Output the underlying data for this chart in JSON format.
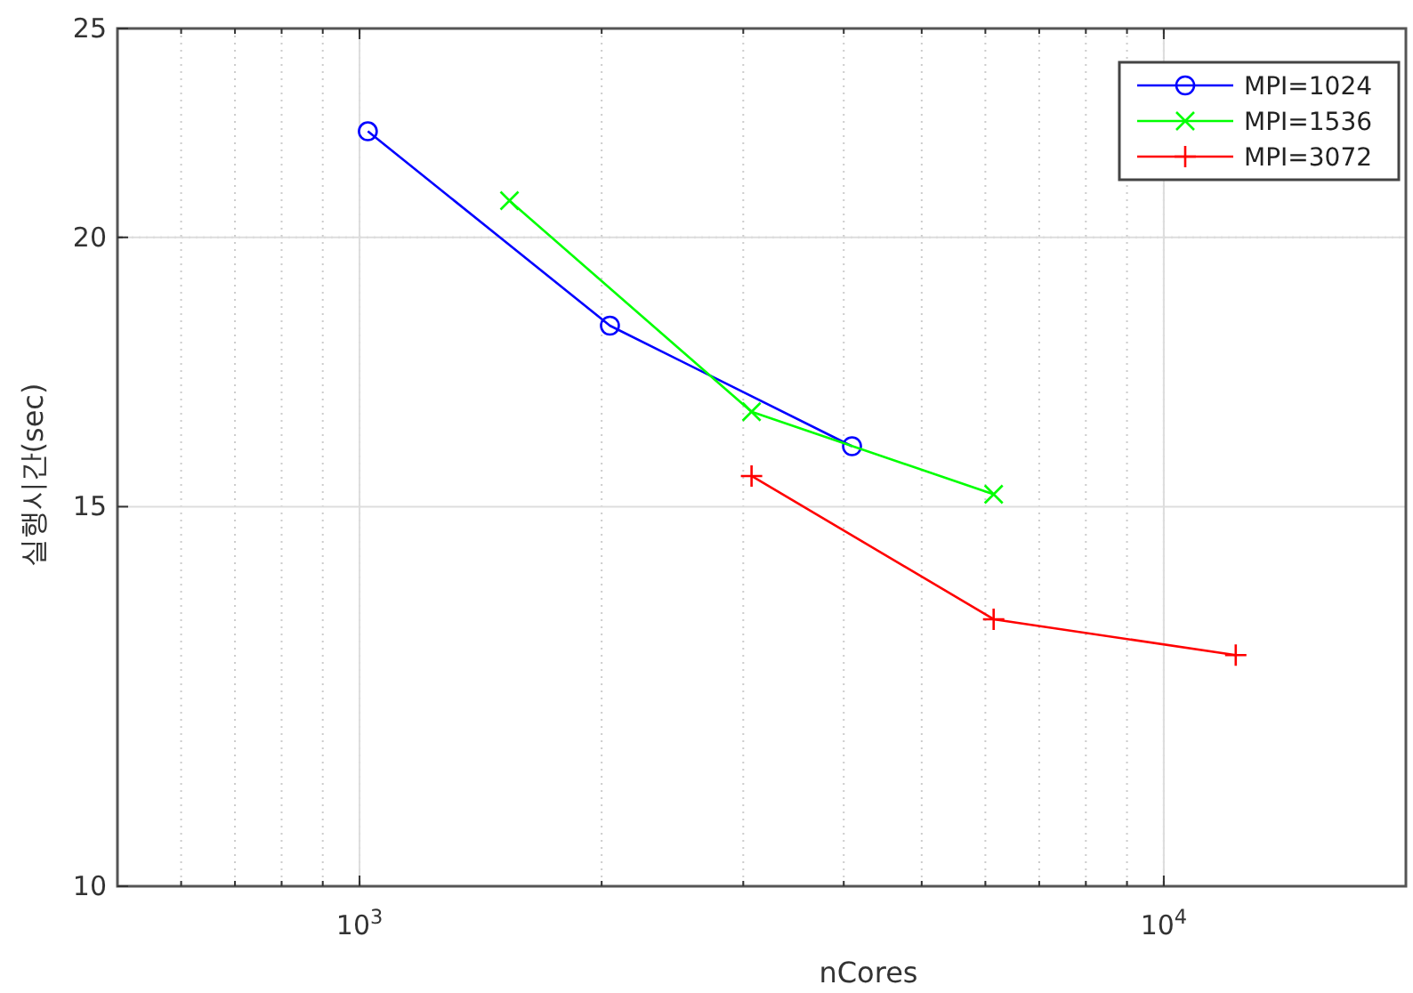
{
  "chart_data": {
    "type": "line",
    "xlabel": "nCores",
    "ylabel": "실행시간(sec)",
    "log": "xy",
    "grid": true,
    "legend": "top right",
    "line_style": "solid",
    "xlim": [
      500,
      20000
    ],
    "ylim": [
      10,
      25
    ],
    "xticks": [
      {
        "value": 1000,
        "label": "10$^{3}$"
      },
      {
        "value": 10000,
        "label": "10$^{4}$"
      }
    ],
    "yticks": [
      10,
      15,
      20,
      25
    ],
    "series": [
      {
        "name": "MPI=1024",
        "color": "#0000ff",
        "marker": "circle",
        "x": [
          1024,
          2048,
          4096
        ],
        "values": [
          22.4,
          18.2,
          16.0
        ]
      },
      {
        "name": "MPI=1536",
        "color": "#00ff00",
        "marker": "cross",
        "x": [
          1536,
          3072,
          6144
        ],
        "values": [
          20.8,
          16.6,
          15.2
        ]
      },
      {
        "name": "MPI=3072",
        "color": "#ff0000",
        "marker": "plus",
        "x": [
          3072,
          6144,
          12288
        ],
        "values": [
          15.5,
          13.3,
          12.8
        ]
      }
    ]
  }
}
